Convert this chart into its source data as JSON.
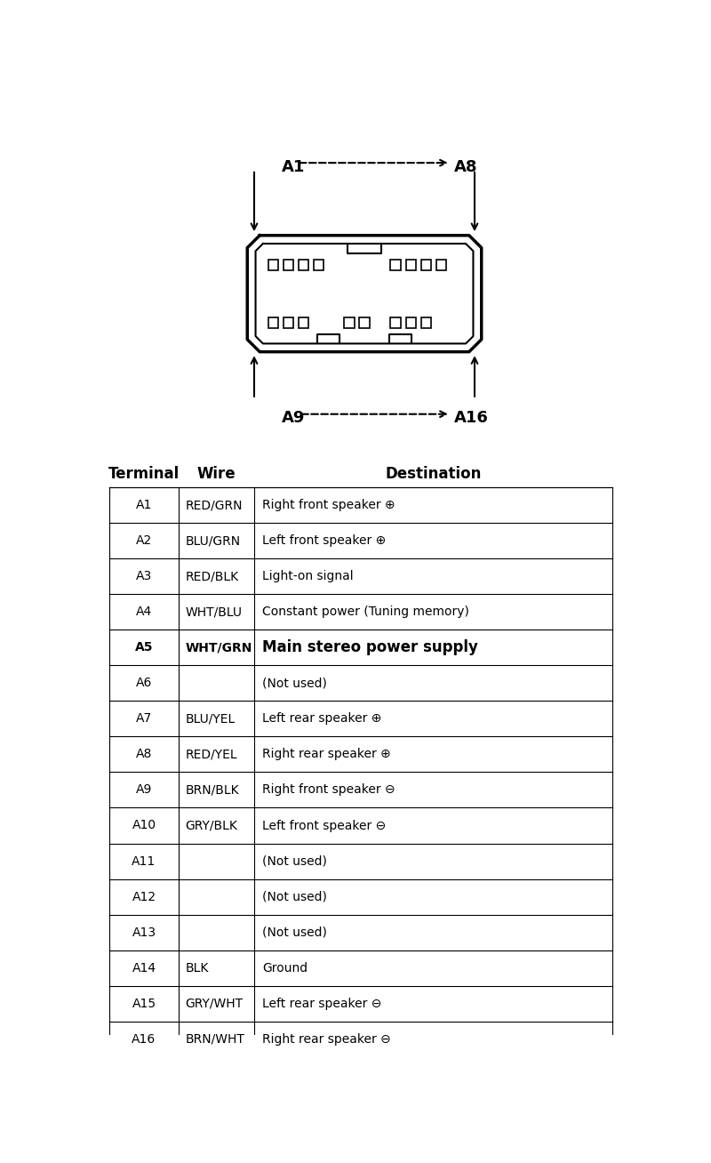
{
  "bg_color": "#ffffff",
  "connector_label_top_left": "A1",
  "connector_label_top_right": "A8",
  "connector_label_bot_left": "A9",
  "connector_label_bot_right": "A16",
  "table_headers": [
    "Terminal",
    "Wire",
    "Destination"
  ],
  "rows": [
    [
      "A1",
      "RED/GRN",
      "Right front speaker ⊕"
    ],
    [
      "A2",
      "BLU/GRN",
      "Left front speaker ⊕"
    ],
    [
      "A3",
      "RED/BLK",
      "Light-on signal"
    ],
    [
      "A4",
      "WHT/BLU",
      "Constant power (Tuning memory)"
    ],
    [
      "A5",
      "WHT/GRN",
      "Main stereo power supply"
    ],
    [
      "A6",
      "",
      "(Not used)"
    ],
    [
      "A7",
      "BLU/YEL",
      "Left rear speaker ⊕"
    ],
    [
      "A8",
      "RED/YEL",
      "Right rear speaker ⊕"
    ],
    [
      "A9",
      "BRN/BLK",
      "Right front speaker ⊖"
    ],
    [
      "A10",
      "GRY/BLK",
      "Left front speaker ⊖"
    ],
    [
      "A11",
      "",
      "(Not used)"
    ],
    [
      "A12",
      "",
      "(Not used)"
    ],
    [
      "A13",
      "",
      "(Not used)"
    ],
    [
      "A14",
      "BLK",
      "Ground"
    ],
    [
      "A15",
      "GRY/WHT",
      "Left rear speaker ⊖"
    ],
    [
      "A16",
      "BRN/WHT",
      "Right rear speaker ⊖"
    ]
  ],
  "bold_row_idx": 4,
  "header_fontsize": 12,
  "cell_fontsize": 10,
  "bold_dest_fontsize": 12
}
